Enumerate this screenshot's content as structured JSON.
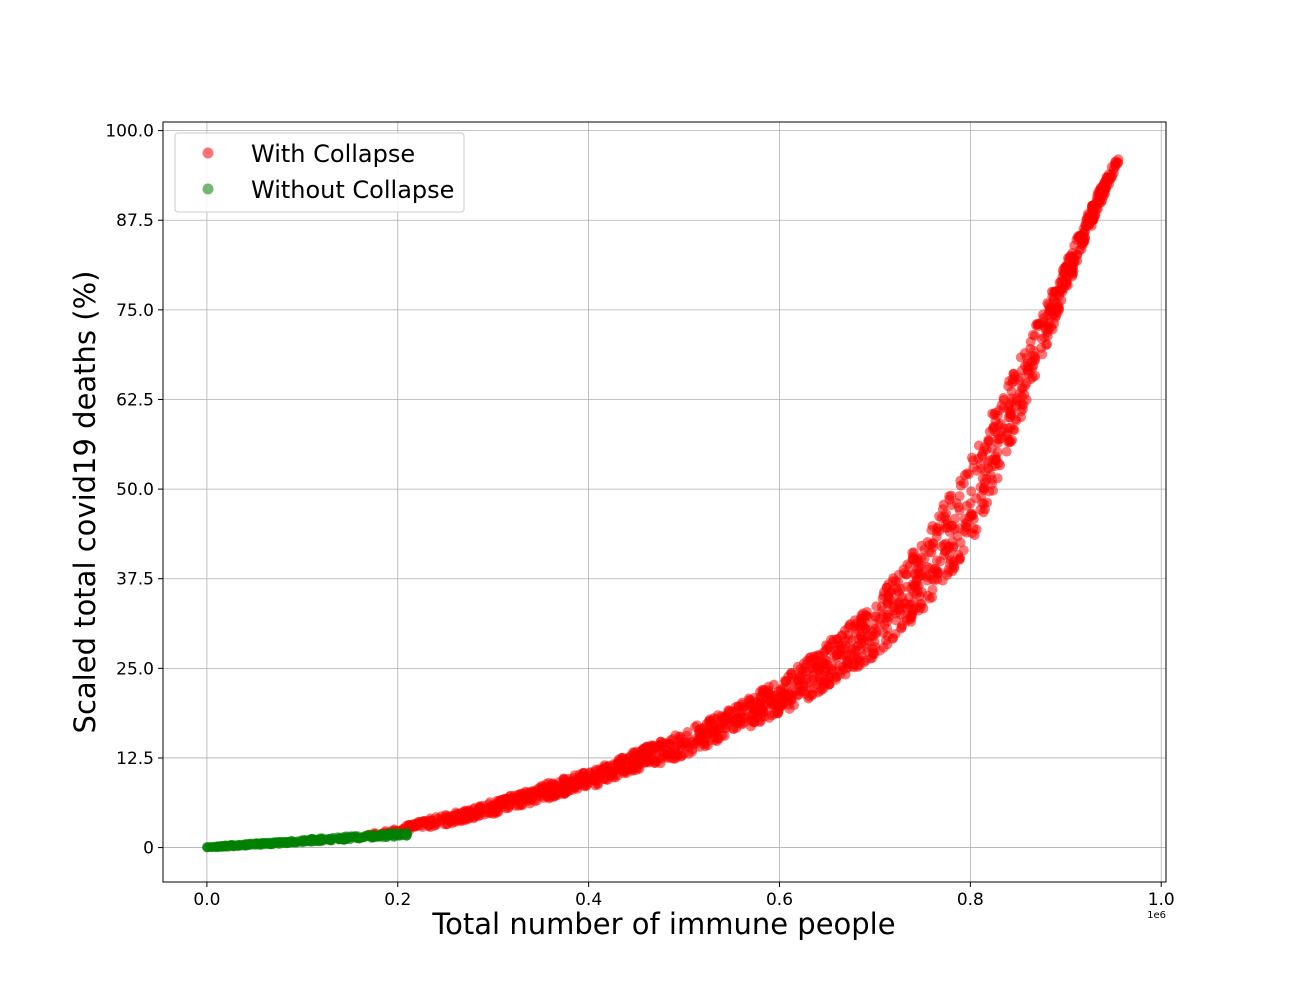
{
  "chart_data": {
    "type": "scatter",
    "title": "",
    "xlabel": "Total number of immune people",
    "ylabel": "Scaled total covid19 deaths (%)",
    "x_offset_label": "1e6",
    "xlim": [
      -0.046,
      1.005
    ],
    "ylim": [
      -4.8,
      101.2
    ],
    "x_ticks": [
      0.0,
      0.2,
      0.4,
      0.6,
      0.8,
      1.0
    ],
    "x_tick_labels": [
      "0.0",
      "0.2",
      "0.4",
      "0.6",
      "0.8",
      "1.0"
    ],
    "y_ticks": [
      0,
      12.5,
      25.0,
      37.5,
      50.0,
      62.5,
      75.0,
      87.5,
      100.0
    ],
    "y_tick_labels": [
      "0",
      "12.5",
      "25.0",
      "37.5",
      "50.0",
      "62.5",
      "75.0",
      "87.5",
      "100.0"
    ],
    "grid": true,
    "legend_position": "top-left",
    "series": [
      {
        "name": "With Collapse",
        "color": "#ff0000",
        "x": [
          0.17,
          0.2,
          0.22,
          0.25,
          0.28,
          0.3,
          0.33,
          0.36,
          0.4,
          0.43,
          0.46,
          0.5,
          0.53,
          0.56,
          0.6,
          0.63,
          0.66,
          0.7,
          0.72,
          0.75,
          0.77,
          0.8,
          0.82,
          0.84,
          0.86,
          0.88,
          0.9,
          0.92,
          0.94,
          0.955
        ],
        "y": [
          1.8,
          2.3,
          3.0,
          3.9,
          4.8,
          5.6,
          6.8,
          8.0,
          9.5,
          11.0,
          12.6,
          14.5,
          16.3,
          18.3,
          21.0,
          23.5,
          26.5,
          30.5,
          33.5,
          38.0,
          42.0,
          48.0,
          54.0,
          60.0,
          66.5,
          73.0,
          79.5,
          86.0,
          92.0,
          96.0
        ],
        "spread_y": [
          0.4,
          0.5,
          0.6,
          0.7,
          0.8,
          0.9,
          1.0,
          1.1,
          1.2,
          1.3,
          1.5,
          1.7,
          1.9,
          2.1,
          2.4,
          2.8,
          3.2,
          3.8,
          4.3,
          5.0,
          5.5,
          6.0,
          5.8,
          5.0,
          4.0,
          3.0,
          2.2,
          1.6,
          1.1,
          0.6
        ]
      },
      {
        "name": "Without Collapse",
        "color": "#008000",
        "x": [
          0.0,
          0.02,
          0.05,
          0.08,
          0.1,
          0.12,
          0.15,
          0.18,
          0.21
        ],
        "y": [
          0.05,
          0.2,
          0.45,
          0.7,
          0.9,
          1.1,
          1.35,
          1.6,
          1.9
        ],
        "spread_y": [
          0.05,
          0.1,
          0.15,
          0.15,
          0.2,
          0.2,
          0.25,
          0.25,
          0.3
        ]
      }
    ]
  }
}
